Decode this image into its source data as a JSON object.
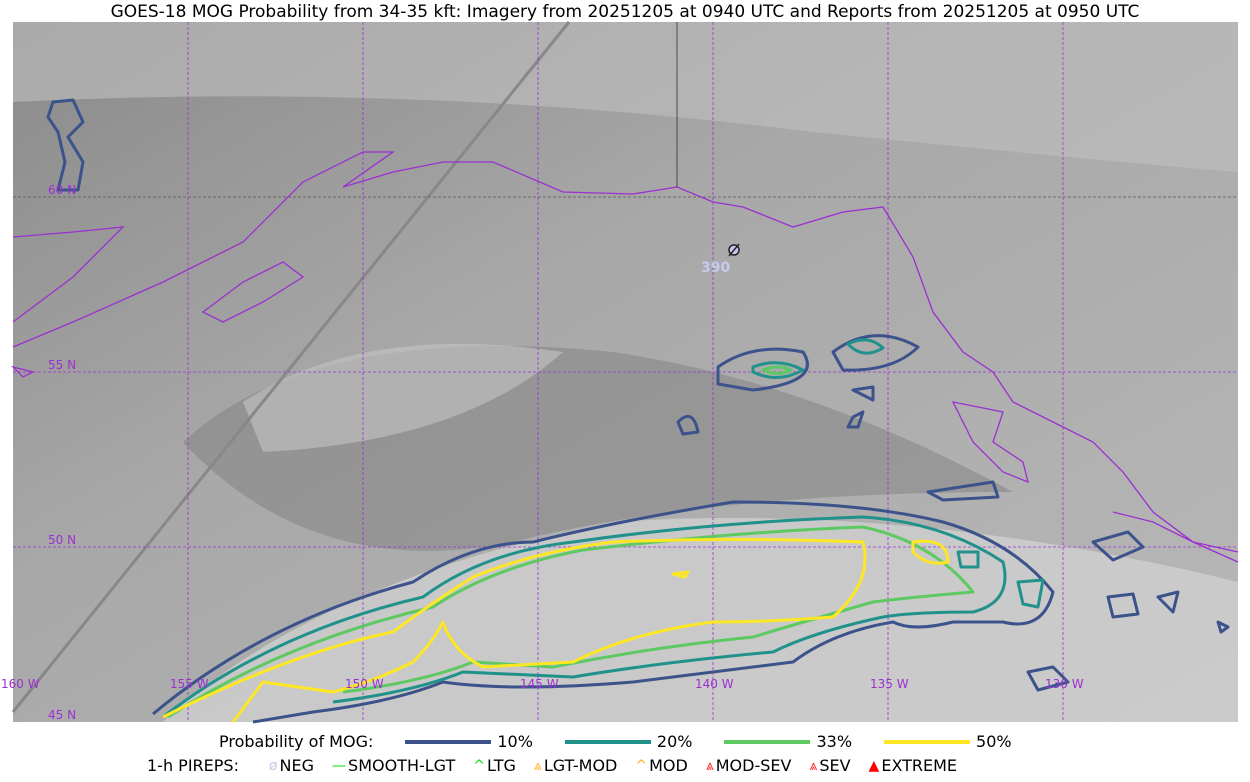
{
  "title": "GOES-18 MOG Probability from 34-35 kft: Imagery from 20251205 at 0940 UTC and Reports from 20251205 at 0950 UTC",
  "map": {
    "lon_labels": [
      "160 W",
      "155 W",
      "150 W",
      "145 W",
      "140 W",
      "135 W",
      "130 W"
    ],
    "lat_labels": [
      "60 N",
      "55 N",
      "50 N",
      "45 N"
    ],
    "pirep": {
      "type": "NEG",
      "icon": "neg-circle-slash-icon",
      "altitude": "390",
      "color": "#c8c8f0"
    },
    "colors": {
      "coastline": "#9b30d0",
      "gridline": "#9b30d0"
    }
  },
  "legend": {
    "prob_label": "Probability of MOG:",
    "prob_items": [
      {
        "label": "10%",
        "color": "#3b528b"
      },
      {
        "label": "20%",
        "color": "#21918c"
      },
      {
        "label": "33%",
        "color": "#5ec962"
      },
      {
        "label": "50%",
        "color": "#fde725"
      }
    ],
    "pirep_label": "1-h PIREPS:",
    "pirep_items": [
      {
        "label": "NEG",
        "symbol": "ø",
        "color": "#c8c8f0"
      },
      {
        "label": "SMOOTH-LGT",
        "symbol": "—",
        "color": "#00e000"
      },
      {
        "label": "LTG",
        "symbol": "^",
        "color": "#00e000"
      },
      {
        "label": "LGT-MOD",
        "symbol": "⩓",
        "color": "#ffb020"
      },
      {
        "label": "MOD",
        "symbol": "^",
        "color": "#ffb020"
      },
      {
        "label": "MOD-SEV",
        "symbol": "⩓",
        "color": "#ff2020"
      },
      {
        "label": "SEV",
        "symbol": "⩓",
        "color": "#ff2020"
      },
      {
        "label": "EXTREME",
        "symbol": "▲",
        "color": "#ff0000"
      }
    ]
  }
}
